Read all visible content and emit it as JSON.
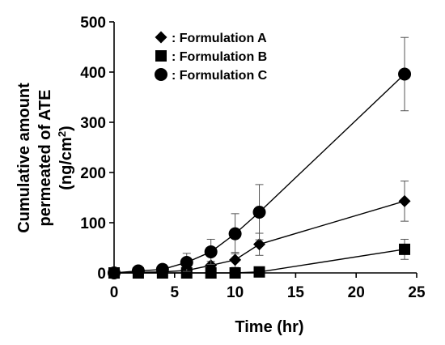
{
  "chart_data": {
    "type": "scatter",
    "xlabel": "Time (hr)",
    "ylabel_lines": [
      "Cumulative amount",
      "permeated of ATE",
      "(ng/cm",
      "2",
      ")"
    ],
    "xlim": [
      0,
      25
    ],
    "ylim": [
      0,
      500
    ],
    "x_ticks": [
      0,
      5,
      10,
      15,
      20,
      25
    ],
    "y_ticks": [
      0,
      100,
      200,
      300,
      400,
      500
    ],
    "grid": false,
    "legend_position": "top-left",
    "series": [
      {
        "name": ": Formulation A",
        "marker": "diamond",
        "x": [
          0,
          2,
          4,
          6,
          8,
          10,
          12,
          24
        ],
        "y": [
          0,
          1,
          2,
          5,
          15,
          26,
          57,
          143
        ],
        "err": [
          0,
          2,
          3,
          6,
          8,
          15,
          22,
          40
        ]
      },
      {
        "name": ": Formulation B",
        "marker": "square",
        "x": [
          0,
          2,
          4,
          6,
          8,
          10,
          12,
          24
        ],
        "y": [
          0,
          0,
          0,
          0,
          0,
          0,
          2,
          47
        ],
        "err": [
          0,
          0,
          0,
          0,
          0,
          0,
          2,
          20
        ]
      },
      {
        "name": ": Formulation C",
        "marker": "circle",
        "x": [
          0,
          2,
          4,
          6,
          8,
          10,
          12,
          24
        ],
        "y": [
          0,
          4,
          7,
          21,
          42,
          78,
          121,
          396
        ],
        "err": [
          0,
          5,
          10,
          18,
          25,
          40,
          55,
          73
        ]
      }
    ]
  }
}
